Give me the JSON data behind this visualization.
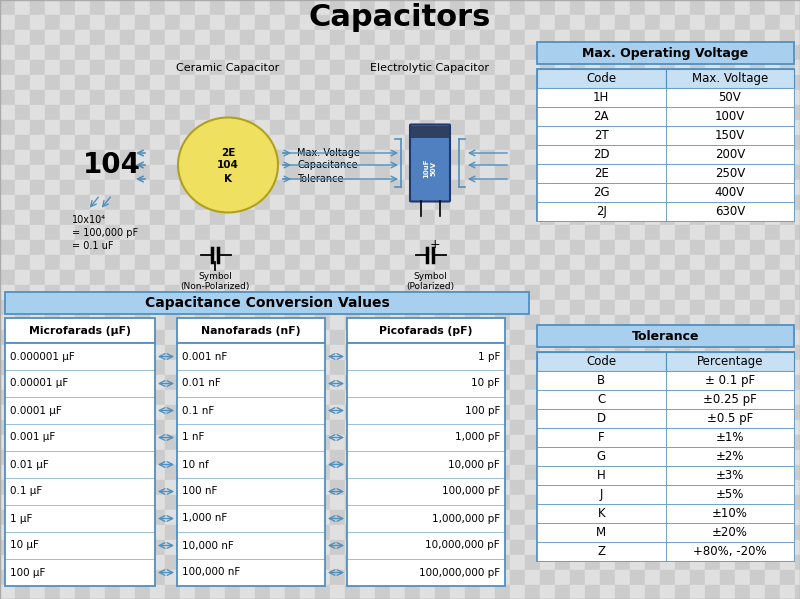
{
  "title": "Capacitors",
  "voltage_title": "Max. Operating Voltage",
  "voltage_headers": [
    "Code",
    "Max. Voltage"
  ],
  "voltage_data": [
    [
      "1H",
      "50V"
    ],
    [
      "2A",
      "100V"
    ],
    [
      "2T",
      "150V"
    ],
    [
      "2D",
      "200V"
    ],
    [
      "2E",
      "250V"
    ],
    [
      "2G",
      "400V"
    ],
    [
      "2J",
      "630V"
    ]
  ],
  "tolerance_title": "Tolerance",
  "tolerance_headers": [
    "Code",
    "Percentage"
  ],
  "tolerance_data": [
    [
      "B",
      "± 0.1 pF"
    ],
    [
      "C",
      "±0.25 pF"
    ],
    [
      "D",
      "±0.5 pF"
    ],
    [
      "F",
      "±1%"
    ],
    [
      "G",
      "±2%"
    ],
    [
      "H",
      "±3%"
    ],
    [
      "J",
      "±5%"
    ],
    [
      "K",
      "±10%"
    ],
    [
      "M",
      "±20%"
    ],
    [
      "Z",
      "+80%, -20%"
    ]
  ],
  "conversion_title": "Capacitance Conversion Values",
  "micro_header": "Microfarads (μF)",
  "nano_header": "Nanofarads (nF)",
  "pico_header": "Picofarads (pF)",
  "micro_values": [
    "0.000001 μF",
    "0.00001 μF",
    "0.0001 μF",
    "0.001 μF",
    "0.01 μF",
    "0.1 μF",
    "1 μF",
    "10 μF",
    "100 μF"
  ],
  "nano_values": [
    "0.001 nF",
    "0.01 nF",
    "0.1 nF",
    "1 nF",
    "10 nf",
    "100 nF",
    "1,000 nF",
    "10,000 nF",
    "100,000 nF"
  ],
  "pico_values": [
    "1 pF",
    "10 pF",
    "100 pF",
    "1,000 pF",
    "10,000 pF",
    "100,000 pF",
    "1,000,000 pF",
    "10,000,000 pF",
    "100,000,000 pF"
  ],
  "ceramic_label": "Ceramic Capacitor",
  "electrolytic_label": "Electrolytic Capacitor",
  "cap_code_labels": [
    "2E",
    "104",
    "K"
  ],
  "cap_code_meanings": [
    "Max. Voltage",
    "Capacitance",
    "Tolerance"
  ],
  "symbol_nonpol": "Symbol\n(Non-Polarized)",
  "symbol_pol": "Symbol\n(Polarized)",
  "hdr_blue": "#a8d0ee",
  "hdr_blue2": "#c8e0f4",
  "border_blue": "#5090c0",
  "cap_yellow": "#f0e060",
  "cap_blue_body": "#5080c0",
  "checker_a": "#cccccc",
  "checker_b": "#e0e0e0",
  "checker_size": 15
}
